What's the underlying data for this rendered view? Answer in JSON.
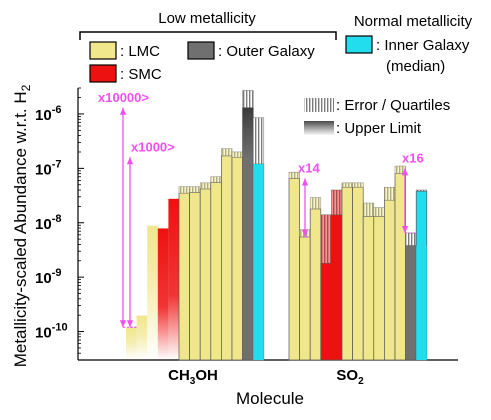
{
  "chart_data": {
    "type": "bar",
    "y_scale": "log",
    "ylim": [
      3e-11,
      3e-06
    ],
    "xlabel": "Molecule",
    "ylabel": "Metallicity-scaled Abundance w.r.t. H",
    "ylabel_sub": "2",
    "y_ticks": [
      {
        "value": 1e-10,
        "base": "10",
        "exp": "-10"
      },
      {
        "value": 1e-09,
        "base": "10",
        "exp": "-9"
      },
      {
        "value": 1e-08,
        "base": "10",
        "exp": "-8"
      },
      {
        "value": 1e-07,
        "base": "10",
        "exp": "-7"
      },
      {
        "value": 1e-06,
        "base": "10",
        "exp": "-6"
      }
    ],
    "groups": [
      {
        "label_main": "CH",
        "label_sub": "3",
        "label_end": "OH",
        "bars": [
          {
            "category": "LMC",
            "value": 1.2e-10,
            "upper_limit": true
          },
          {
            "category": "LMC",
            "value": 2e-10,
            "upper_limit": true
          },
          {
            "category": "LMC",
            "value": 9e-09,
            "upper_limit": true
          },
          {
            "category": "SMC",
            "value": 8e-09,
            "upper_limit": true
          },
          {
            "category": "SMC",
            "value": 2.8e-08,
            "upper_limit": true
          },
          {
            "category": "LMC",
            "value": 3.5e-08,
            "err_hi": 4.6e-08
          },
          {
            "category": "LMC",
            "value": 3.6e-08,
            "err_hi": 4.6e-08
          },
          {
            "category": "LMC",
            "value": 4.2e-08,
            "err_hi": 5.4e-08
          },
          {
            "category": "LMC",
            "value": 5.5e-08,
            "err_hi": 7e-08
          },
          {
            "category": "LMC",
            "value": 1.7e-07,
            "err_hi": 2.3e-07
          },
          {
            "category": "LMC",
            "value": 1.6e-07,
            "err_hi": 2e-07
          },
          {
            "category": "Outer Galaxy",
            "value": 1.3e-06,
            "err_hi": 2.7e-06,
            "err_lo": 1.6e-07
          },
          {
            "category": "Inner Galaxy",
            "value": 1.2e-07,
            "err_hi": 8.5e-07,
            "quartile_lo": 1.2e-07
          }
        ]
      },
      {
        "label_main": "SO",
        "label_sub": "2",
        "label_end": "",
        "bars": [
          {
            "category": "LMC",
            "value": 6.5e-08,
            "err_hi": 8.5e-08
          },
          {
            "category": "LMC",
            "value": 5.5e-09,
            "err_hi": 7.5e-09
          },
          {
            "category": "LMC",
            "value": 1.8e-08,
            "err_hi": 2.9e-08
          },
          {
            "category": "SMC",
            "value": 1.8e-09,
            "err_hi": 1.4e-08
          },
          {
            "category": "SMC",
            "value": 1.4e-08,
            "err_hi": 4e-08
          },
          {
            "category": "LMC",
            "value": 4.5e-08,
            "err_hi": 5.4e-08
          },
          {
            "category": "LMC",
            "value": 4.5e-08,
            "err_hi": 5.4e-08
          },
          {
            "category": "LMC",
            "value": 1.3e-08,
            "err_hi": 2.3e-08
          },
          {
            "category": "LMC",
            "value": 1.3e-08,
            "err_hi": 1.9e-08
          },
          {
            "category": "LMC",
            "value": 2.6e-08,
            "err_hi": 4.5e-08
          },
          {
            "category": "LMC",
            "value": 8e-08,
            "err_hi": 1.1e-07
          },
          {
            "category": "Outer Galaxy",
            "value": 3.8e-09,
            "err_hi": 6.5e-09,
            "err_lo": 3.8e-09
          },
          {
            "category": "Inner Galaxy",
            "value": 3.8e-08,
            "err_hi": 4e-08,
            "quartile_lo": 3.8e-09
          }
        ]
      }
    ],
    "annotations": [
      {
        "text": "x10000>",
        "group": 0,
        "bar": 0,
        "from": 1.2e-10,
        "to": 1.3e-06
      },
      {
        "text": "x1000>",
        "group": 0,
        "bar": 0,
        "from": 1.2e-10,
        "to": 1.6e-07
      },
      {
        "text": "x14",
        "group": 1,
        "bar": 1,
        "from": 5.5e-09,
        "to": 6.5e-08
      },
      {
        "text": "x16",
        "group": 1,
        "bar": 11,
        "from": 6.5e-09,
        "to": 1e-07
      }
    ],
    "legend": {
      "bracket_title": "Low metallicity",
      "normal_title": "Normal metallicity",
      "items": [
        {
          "key": "LMC",
          "label": ": LMC",
          "color": "#f0e68c"
        },
        {
          "key": "SMC",
          "label": ": SMC",
          "color": "#ee1111"
        },
        {
          "key": "Outer Galaxy",
          "label": ": Outer Galaxy",
          "color": "#707070"
        },
        {
          "key": "Inner Galaxy",
          "label": ": Inner Galaxy",
          "label2": "(median)",
          "color": "#22ddee"
        }
      ],
      "error_label": ": Error / Quartiles",
      "upper_label": ": Upper Limit"
    },
    "colors": {
      "LMC": "#f0e68c",
      "SMC": "#ee1111",
      "Outer Galaxy": "#707070",
      "Inner Galaxy": "#22ddee",
      "annotation": "#f050f0"
    }
  }
}
